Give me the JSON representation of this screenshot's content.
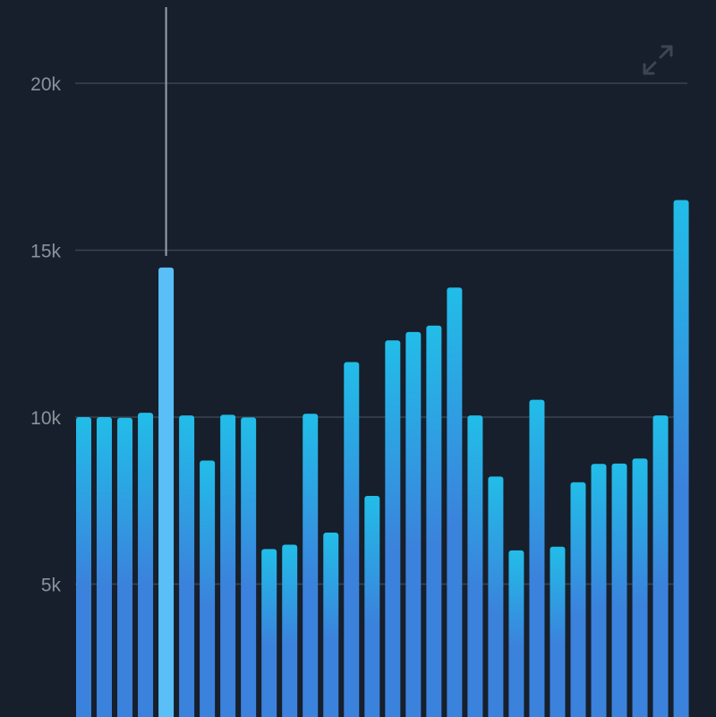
{
  "chart_data": {
    "type": "bar",
    "title": "",
    "xlabel": "",
    "ylabel": "",
    "ylim": [
      0,
      22500
    ],
    "grid": true,
    "y_ticks": [
      {
        "value": 5000,
        "label": "5k"
      },
      {
        "value": 10000,
        "label": "10k"
      },
      {
        "value": 15000,
        "label": "15k"
      },
      {
        "value": 20000,
        "label": "20k"
      }
    ],
    "values": [
      10000,
      10000,
      9980,
      10130,
      14480,
      10050,
      8700,
      10070,
      9990,
      6050,
      6180,
      10100,
      6540,
      11650,
      7640,
      12300,
      12550,
      12740,
      13880,
      10050,
      8220,
      6010,
      10520,
      6120,
      8050,
      8600,
      8610,
      8760,
      10050,
      16500
    ],
    "highlighted_index": 4,
    "colors": {
      "background": "#161f2b",
      "bar_top": "#22bde8",
      "bar_bottom": "#3b82dc",
      "highlight_bar": "#5bbff7",
      "grid": "#3a4350",
      "cursor_line": "#9aa1a9",
      "tick_text": "#8b929c",
      "icon": "#3c4552"
    }
  },
  "controls": {
    "expand_icon": "expand-arrows-icon"
  }
}
